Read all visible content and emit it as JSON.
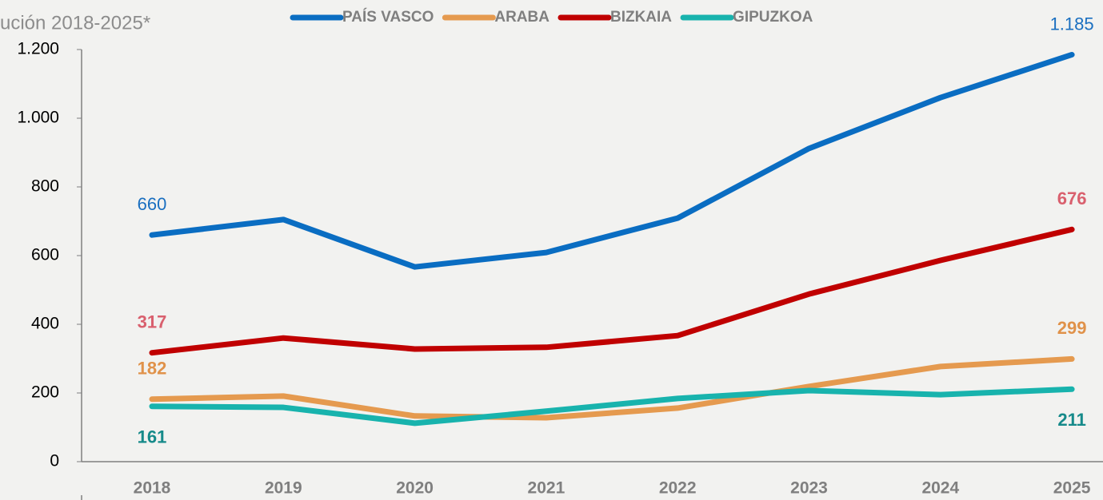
{
  "chart_data": {
    "type": "line",
    "title": "ución 2018-2025*",
    "categories": [
      "2018",
      "2019",
      "2020",
      "2021",
      "2022",
      "2023",
      "2024",
      "2025"
    ],
    "ylim": [
      0,
      1200
    ],
    "yticks": [
      0,
      200,
      400,
      600,
      800,
      {
        "value": 1000,
        "label": "1.000"
      },
      {
        "value": 1200,
        "label": "1.200"
      }
    ],
    "grid": false,
    "legend": "top",
    "series": [
      {
        "name": "PAÍS VASCO",
        "color": "#0a6dc2",
        "label_color": "#1a6fc0",
        "label_bold": false,
        "label_position": "above",
        "values": [
          660,
          705,
          567,
          609,
          709,
          912,
          1060,
          1185
        ],
        "value_labels": [
          "660",
          null,
          null,
          null,
          null,
          null,
          null,
          "1.185"
        ]
      },
      {
        "name": "ARABA",
        "color": "#e59a4f",
        "label_color": "#e0924a",
        "label_bold": true,
        "label_position": "above",
        "values": [
          182,
          191,
          133,
          128,
          156,
          219,
          277,
          299
        ],
        "value_labels": [
          "182",
          null,
          null,
          null,
          null,
          null,
          null,
          "299"
        ]
      },
      {
        "name": "BIZKAIA",
        "color": "#c00000",
        "label_color": "#d9606e",
        "label_bold": true,
        "label_position": "above",
        "values": [
          317,
          360,
          328,
          333,
          367,
          488,
          586,
          676
        ],
        "value_labels": [
          "317",
          null,
          null,
          null,
          null,
          null,
          null,
          "676"
        ]
      },
      {
        "name": "GIPUZKOA",
        "color": "#18b3ad",
        "label_color": "#168a8a",
        "label_bold": true,
        "label_position": "below",
        "values": [
          161,
          158,
          112,
          147,
          184,
          207,
          195,
          211
        ],
        "value_labels": [
          "161",
          null,
          null,
          null,
          null,
          null,
          null,
          "211"
        ]
      }
    ]
  }
}
